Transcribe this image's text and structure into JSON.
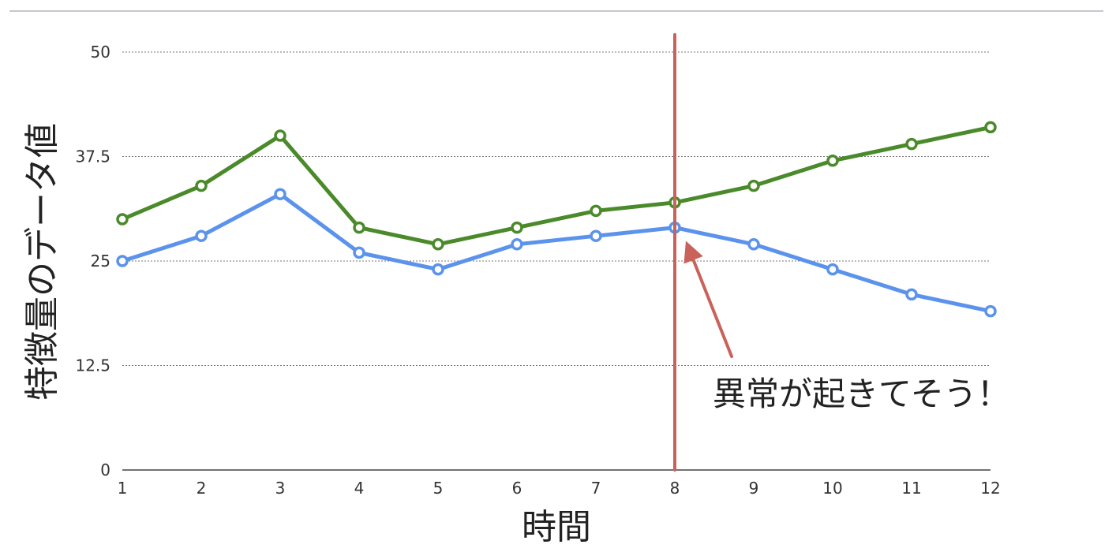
{
  "chart_data": {
    "type": "line",
    "xlabel": "時間",
    "ylabel": "特徴量のデータ値",
    "x": [
      1,
      2,
      3,
      4,
      5,
      6,
      7,
      8,
      9,
      10,
      11,
      12
    ],
    "ylim": [
      0,
      50
    ],
    "y_ticks": [
      "0",
      "12.5",
      "25",
      "37.5",
      "50"
    ],
    "grid": "horizontal dotted",
    "series": [
      {
        "color": "#4a8a2a",
        "values": [
          30,
          34,
          40,
          29,
          27,
          29,
          31,
          32,
          34,
          37,
          39,
          41
        ]
      },
      {
        "color": "#5b93ec",
        "values": [
          25,
          28,
          33,
          26,
          24,
          27,
          28,
          29,
          27,
          24,
          21,
          19
        ]
      }
    ],
    "marker_line": {
      "x": 8,
      "color": "#c9625a"
    },
    "annotation": {
      "text": "異常が起きてそう！",
      "points_to_x": 8,
      "arrow_color": "#c9625a"
    }
  }
}
